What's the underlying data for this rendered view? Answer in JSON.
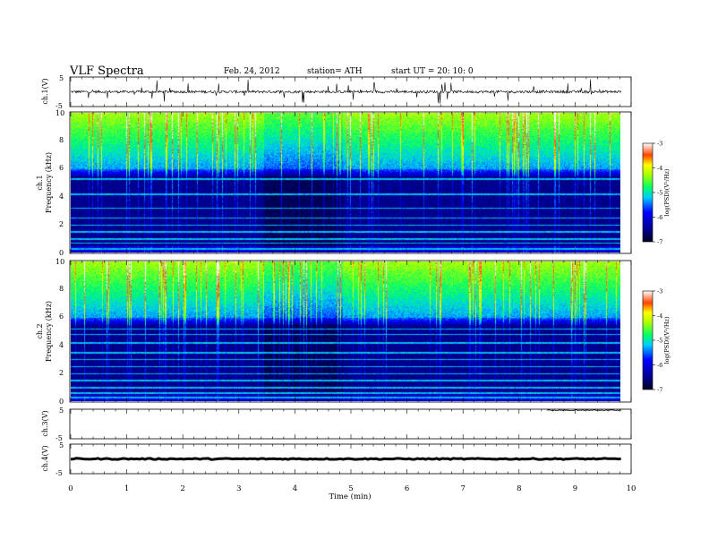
{
  "header": {
    "title": "VLF  Spectra",
    "date": "Feb. 24, 2012",
    "station": "station= ATH",
    "start": "start  UT  =    20: 10: 0"
  },
  "chart_data": [
    {
      "type": "line",
      "id": "ch1-waveform",
      "ylabel": "ch.1(V)",
      "yticks": [
        "5",
        "-5"
      ],
      "ylim": [
        -5,
        5
      ],
      "xlim": [
        0,
        10
      ],
      "baseline_V": 0,
      "color": "#000000"
    },
    {
      "type": "heatmap",
      "id": "ch1-spectrogram",
      "ylabel": "ch.1\nFrequency (kHz)",
      "ylim": [
        0,
        10
      ],
      "yticks": [
        "0",
        "2",
        "4",
        "6",
        "8",
        "10"
      ],
      "xlim": [
        0,
        10
      ],
      "data_end_min": 9.82,
      "colorbar": {
        "label": "log(PSD)(V²/Hz)",
        "range": [
          -7,
          -3
        ],
        "ticks": [
          "-3",
          "-4",
          "-5",
          "-6",
          "-7"
        ]
      },
      "features": {
        "quiet_band_kHz": [
          0.5,
          5.5
        ],
        "broadband_noise_above_kHz": 6,
        "quiet_interval_min": [
          3.45,
          4.85
        ],
        "constant_tones_kHz": [
          0.3,
          0.7,
          1.0,
          1.5,
          2.0,
          2.5,
          3.2,
          4.2,
          5.3
        ]
      }
    },
    {
      "type": "heatmap",
      "id": "ch2-spectrogram",
      "ylabel": "ch.2\nFrequency (kHz)",
      "ylim": [
        0,
        10
      ],
      "yticks": [
        "0",
        "2",
        "4",
        "6",
        "8",
        "10"
      ],
      "xlim": [
        0,
        10
      ],
      "data_end_min": 9.82,
      "colorbar": {
        "label": "log(PSD)(V²/Hz)",
        "range": [
          -7,
          -3
        ],
        "ticks": [
          "-3",
          "-4",
          "-5",
          "-6",
          "-7"
        ]
      },
      "features": {
        "quiet_band_kHz": [
          0.5,
          5.5
        ],
        "broadband_noise_above_kHz": 6,
        "quiet_interval_min": [
          3.45,
          4.85
        ],
        "constant_tones_kHz": [
          0.3,
          0.6,
          1.0,
          1.5,
          2.0,
          2.5,
          3.0,
          3.5,
          4.2,
          4.8,
          5.2
        ]
      }
    },
    {
      "type": "line",
      "id": "ch3-waveform",
      "ylabel": "ch.3(V)",
      "yticks": [
        "5",
        "-5"
      ],
      "ylim": [
        -5,
        5
      ],
      "xlim": [
        0,
        10
      ],
      "segment_min": [
        8.5,
        9.82
      ],
      "level_V": 5,
      "color": "#000000"
    },
    {
      "type": "line",
      "id": "ch4-waveform",
      "ylabel": "ch.4(V)",
      "yticks": [
        "5",
        "-5"
      ],
      "ylim": [
        -5,
        5
      ],
      "xlim": [
        0,
        10
      ],
      "segment_min": [
        0,
        9.82
      ],
      "level_V": 0,
      "color": "#000000"
    }
  ],
  "xaxis": {
    "label": "Time  (min)",
    "ticks": [
      "0",
      "1",
      "2",
      "3",
      "4",
      "5",
      "6",
      "7",
      "8",
      "9",
      "10"
    ],
    "range": [
      0,
      10
    ]
  }
}
